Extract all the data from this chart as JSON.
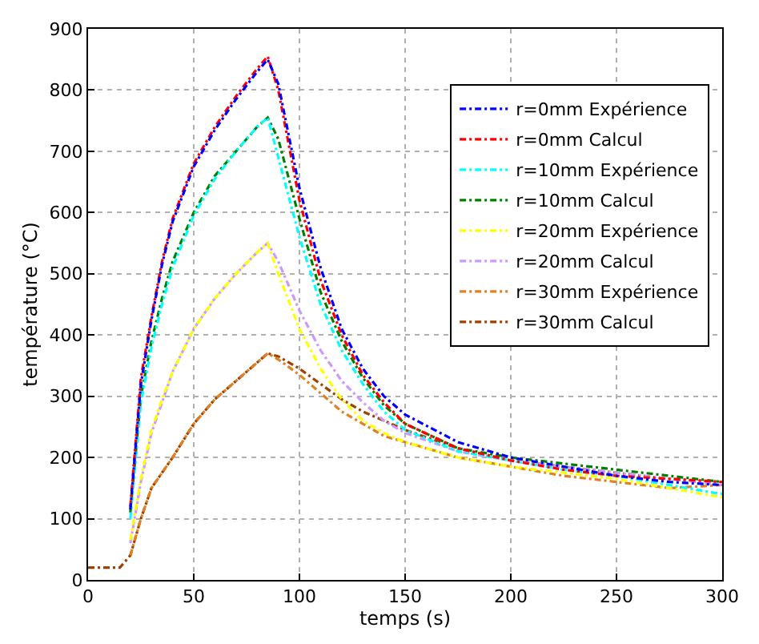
{
  "chart_data": {
    "type": "line",
    "xlabel": "temps (s)",
    "ylabel": "température (°C)",
    "xlim": [
      0,
      300
    ],
    "xticks": [
      0,
      50,
      100,
      150,
      200,
      250,
      300
    ],
    "ylim": [
      0,
      900
    ],
    "yticks": [
      0,
      100,
      200,
      300,
      400,
      500,
      600,
      700,
      800,
      900
    ],
    "grid": true,
    "legend": "top right",
    "line_style": "dashed",
    "marker": "none",
    "x": [
      0,
      15,
      20,
      25,
      30,
      35,
      40,
      50,
      60,
      70,
      80,
      85,
      90,
      100,
      110,
      120,
      130,
      140,
      150,
      175,
      200,
      225,
      250,
      275,
      300
    ],
    "series": [
      {
        "name": "r=0mm Expérience",
        "color": "#0000ff",
        "values": [
          null,
          null,
          115,
          320,
          425,
          515,
          585,
          675,
          735,
          785,
          830,
          850,
          810,
          640,
          510,
          410,
          345,
          300,
          270,
          225,
          200,
          185,
          170,
          160,
          155
        ]
      },
      {
        "name": "r=0mm Calcul",
        "color": "#ff0000",
        "values": [
          null,
          null,
          120,
          330,
          430,
          520,
          590,
          680,
          740,
          790,
          835,
          855,
          800,
          620,
          490,
          400,
          335,
          290,
          255,
          215,
          195,
          180,
          170,
          165,
          160
        ]
      },
      {
        "name": "r=10mm Expérience",
        "color": "#00ffff",
        "values": [
          null,
          null,
          100,
          290,
          380,
          450,
          510,
          595,
          655,
          700,
          740,
          755,
          690,
          560,
          450,
          375,
          320,
          275,
          245,
          210,
          195,
          180,
          170,
          155,
          140
        ]
      },
      {
        "name": "r=10mm Calcul",
        "color": "#008000",
        "values": [
          null,
          null,
          110,
          300,
          390,
          460,
          520,
          600,
          660,
          700,
          740,
          755,
          720,
          590,
          470,
          390,
          330,
          285,
          255,
          215,
          200,
          190,
          180,
          170,
          160
        ]
      },
      {
        "name": "r=20mm Expérience",
        "color": "#ffff00",
        "values": [
          null,
          null,
          65,
          165,
          245,
          295,
          340,
          410,
          460,
          500,
          535,
          550,
          500,
          410,
          345,
          295,
          260,
          240,
          225,
          200,
          185,
          175,
          165,
          150,
          135
        ]
      },
      {
        "name": "r=20mm Calcul",
        "color": "#cc99ff",
        "values": [
          null,
          null,
          60,
          160,
          240,
          290,
          340,
          410,
          460,
          500,
          535,
          550,
          520,
          440,
          375,
          325,
          290,
          260,
          240,
          210,
          195,
          185,
          175,
          165,
          155
        ]
      },
      {
        "name": "r=30mm Expérience",
        "color": "#e08020",
        "values": [
          null,
          null,
          40,
          100,
          150,
          175,
          200,
          255,
          295,
          325,
          355,
          370,
          360,
          335,
          305,
          275,
          255,
          235,
          225,
          200,
          185,
          170,
          160,
          150,
          155
        ]
      },
      {
        "name": "r=30mm Calcul",
        "color": "#a04000",
        "values": [
          20,
          20,
          40,
          100,
          150,
          175,
          200,
          255,
          295,
          325,
          355,
          370,
          365,
          345,
          320,
          295,
          275,
          260,
          245,
          215,
          195,
          185,
          175,
          165,
          160
        ]
      }
    ]
  }
}
